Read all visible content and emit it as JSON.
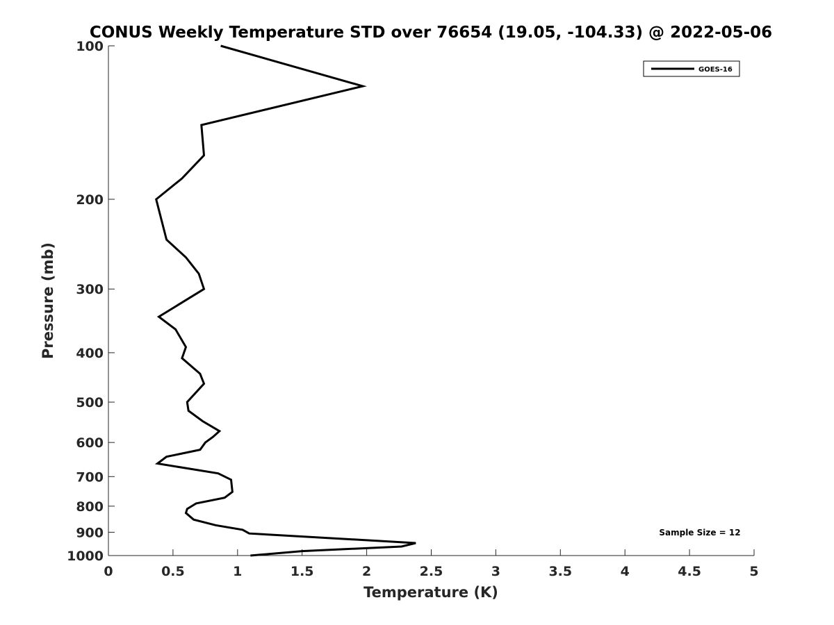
{
  "chart_data": {
    "type": "line",
    "title": "CONUS Weekly Temperature STD over 76654 (19.05, -104.33) @ 2022-05-06",
    "xlabel": "Temperature (K)",
    "ylabel": "Pressure (mb)",
    "xlim": [
      0,
      5
    ],
    "ylim": [
      100,
      1000
    ],
    "yscale": "log",
    "yreversed": true,
    "grid": false,
    "legend_position": "top-right",
    "x_ticks": [
      0,
      0.5,
      1,
      1.5,
      2,
      2.5,
      3,
      3.5,
      4,
      4.5,
      5
    ],
    "x_tick_labels": [
      "0",
      "0.5",
      "1",
      "1.5",
      "2",
      "2.5",
      "3",
      "3.5",
      "4",
      "4.5",
      "5"
    ],
    "y_ticks": [
      100,
      200,
      300,
      400,
      500,
      600,
      700,
      800,
      900,
      1000
    ],
    "y_tick_labels": [
      "100",
      "200",
      "300",
      "400",
      "500",
      "600",
      "700",
      "800",
      "900",
      "1000"
    ],
    "series": [
      {
        "name": "GOES-16",
        "color": "#000000",
        "points": [
          [
            0.87,
            100
          ],
          [
            1.97,
            120
          ],
          [
            0.72,
            143
          ],
          [
            0.74,
            164
          ],
          [
            0.57,
            182
          ],
          [
            0.37,
            200
          ],
          [
            0.45,
            240
          ],
          [
            0.6,
            260
          ],
          [
            0.7,
            280
          ],
          [
            0.74,
            300
          ],
          [
            0.39,
            340
          ],
          [
            0.52,
            360
          ],
          [
            0.6,
            390
          ],
          [
            0.57,
            410
          ],
          [
            0.71,
            440
          ],
          [
            0.74,
            460
          ],
          [
            0.61,
            500
          ],
          [
            0.62,
            520
          ],
          [
            0.73,
            545
          ],
          [
            0.86,
            570
          ],
          [
            0.81,
            585
          ],
          [
            0.75,
            600
          ],
          [
            0.71,
            620
          ],
          [
            0.45,
            640
          ],
          [
            0.38,
            660
          ],
          [
            0.85,
            690
          ],
          [
            0.95,
            710
          ],
          [
            0.96,
            750
          ],
          [
            0.9,
            770
          ],
          [
            0.68,
            790
          ],
          [
            0.61,
            810
          ],
          [
            0.6,
            825
          ],
          [
            0.66,
            850
          ],
          [
            0.83,
            872
          ],
          [
            1.04,
            890
          ],
          [
            1.09,
            905
          ],
          [
            2.38,
            945
          ],
          [
            2.27,
            960
          ],
          [
            1.5,
            980
          ],
          [
            1.1,
            1000
          ]
        ]
      }
    ],
    "annotation": "Sample Size = 12"
  }
}
